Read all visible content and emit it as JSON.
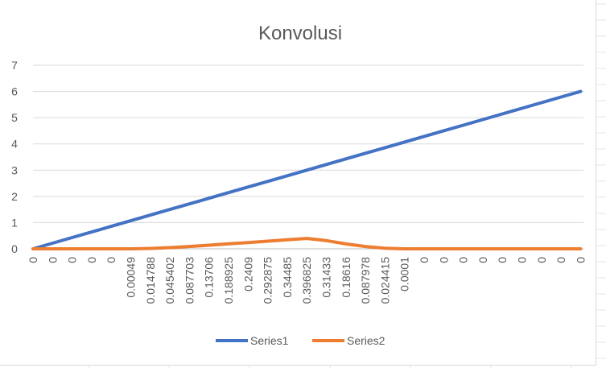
{
  "chart_data": {
    "type": "line",
    "title": "Konvolusi",
    "categories": [
      "0",
      "0",
      "0",
      "0",
      "0",
      "0.00049",
      "0.014788",
      "0.045402",
      "0.087703",
      "0.13706",
      "0.188925",
      "0.2409",
      "0.292875",
      "0.34485",
      "0.396825",
      "0.31433",
      "0.18616",
      "0.087978",
      "0.024415",
      "0.0001",
      "0",
      "0",
      "0",
      "0",
      "0",
      "0",
      "0",
      "0",
      "0"
    ],
    "series": [
      {
        "name": "Series1",
        "color": "#4472c4",
        "values": [
          0,
          0.214,
          0.429,
          0.643,
          0.857,
          1.071,
          1.286,
          1.5,
          1.714,
          1.929,
          2.143,
          2.357,
          2.571,
          2.786,
          3.0,
          3.214,
          3.429,
          3.643,
          3.857,
          4.071,
          4.286,
          4.5,
          4.714,
          4.929,
          5.143,
          5.357,
          5.571,
          5.786,
          6.0
        ]
      },
      {
        "name": "Series2",
        "color": "#ed7d31",
        "values": [
          0,
          0,
          0,
          0,
          0,
          0.00049,
          0.014788,
          0.045402,
          0.087703,
          0.13706,
          0.188925,
          0.2409,
          0.292875,
          0.34485,
          0.396825,
          0.31433,
          0.18616,
          0.087978,
          0.024415,
          0.0001,
          0,
          0,
          0,
          0,
          0,
          0,
          0,
          0,
          0
        ]
      }
    ],
    "yticks": [
      "0",
      "1",
      "2",
      "3",
      "4",
      "5",
      "6",
      "7"
    ],
    "ylim": [
      0,
      7
    ],
    "grid": true,
    "legend": "bottom"
  }
}
